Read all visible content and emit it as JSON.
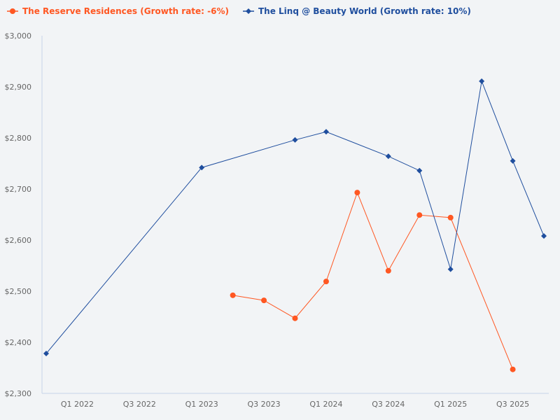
{
  "chart_data": {
    "type": "line",
    "x": [
      "Q4 2021",
      "Q1 2022",
      "Q2 2022",
      "Q3 2022",
      "Q4 2022",
      "Q1 2023",
      "Q2 2023",
      "Q3 2023",
      "Q4 2023",
      "Q1 2024",
      "Q2 2024",
      "Q3 2024",
      "Q4 2024",
      "Q1 2025",
      "Q2 2025",
      "Q3 2025",
      "Q4 2025"
    ],
    "x_tick_labels": [
      "Q1 2022",
      "Q3 2022",
      "Q1 2023",
      "Q3 2023",
      "Q1 2024",
      "Q3 2024",
      "Q1 2025",
      "Q3 2025"
    ],
    "y_tick_labels": [
      "$2,300",
      "$2,400",
      "$2,500",
      "$2,600",
      "$2,700",
      "$2,800",
      "$2,900",
      "$3,000"
    ],
    "ylim": [
      2300,
      3000
    ],
    "grid": false,
    "legend": "top-left",
    "series": [
      {
        "name": "The Reserve Residences (Growth rate: -6%)",
        "color": "#ff5722",
        "marker": "circle",
        "values": [
          null,
          null,
          null,
          null,
          null,
          null,
          2492,
          2482,
          2447,
          2519,
          2693,
          2540,
          2649,
          2644,
          null,
          2347,
          null
        ]
      },
      {
        "name": "The Linq @ Beauty World (Growth rate: 10%)",
        "color": "#1f4e9e",
        "marker": "diamond",
        "values": [
          2378,
          null,
          null,
          null,
          null,
          2742,
          null,
          null,
          2796,
          2812,
          null,
          2764,
          2736,
          2543,
          2911,
          2755,
          2608
        ]
      }
    ]
  }
}
